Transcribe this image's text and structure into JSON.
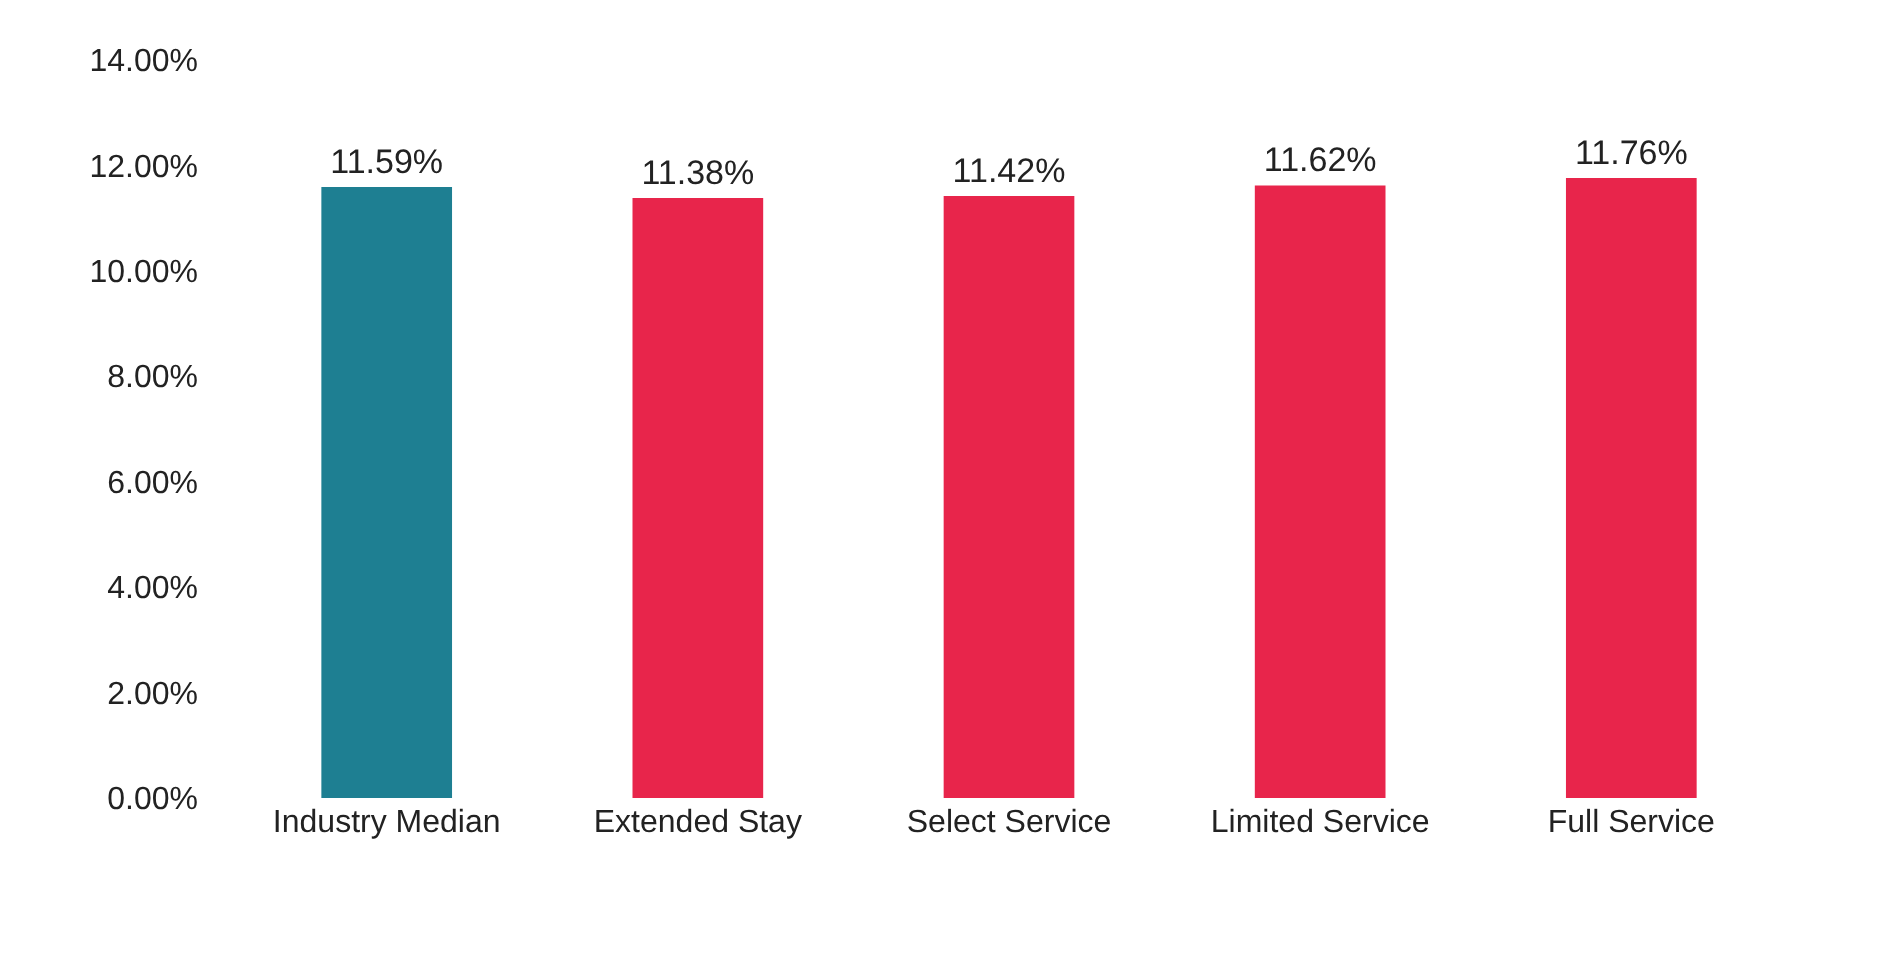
{
  "chart_data": {
    "type": "bar",
    "categories": [
      "Industry Median",
      "Extended Stay",
      "Select Service",
      "Limited Service",
      "Full Service"
    ],
    "values": [
      11.59,
      11.38,
      11.42,
      11.62,
      11.76
    ],
    "colors": [
      "#1e7f92",
      "#e8254b",
      "#e8254b",
      "#e8254b",
      "#e8254b"
    ],
    "value_labels": [
      "11.59%",
      "11.38%",
      "11.42%",
      "11.62%",
      "11.76%"
    ],
    "ylim": [
      0,
      14
    ],
    "yticks": [
      {
        "value": 0,
        "label": "0.00%"
      },
      {
        "value": 2,
        "label": "2.00%"
      },
      {
        "value": 4,
        "label": "4.00%"
      },
      {
        "value": 6,
        "label": "6.00%"
      },
      {
        "value": 8,
        "label": "8.00%"
      },
      {
        "value": 10,
        "label": "10.00%"
      },
      {
        "value": 12,
        "label": "12.00%"
      },
      {
        "value": 14,
        "label": "14.00%"
      }
    ]
  }
}
